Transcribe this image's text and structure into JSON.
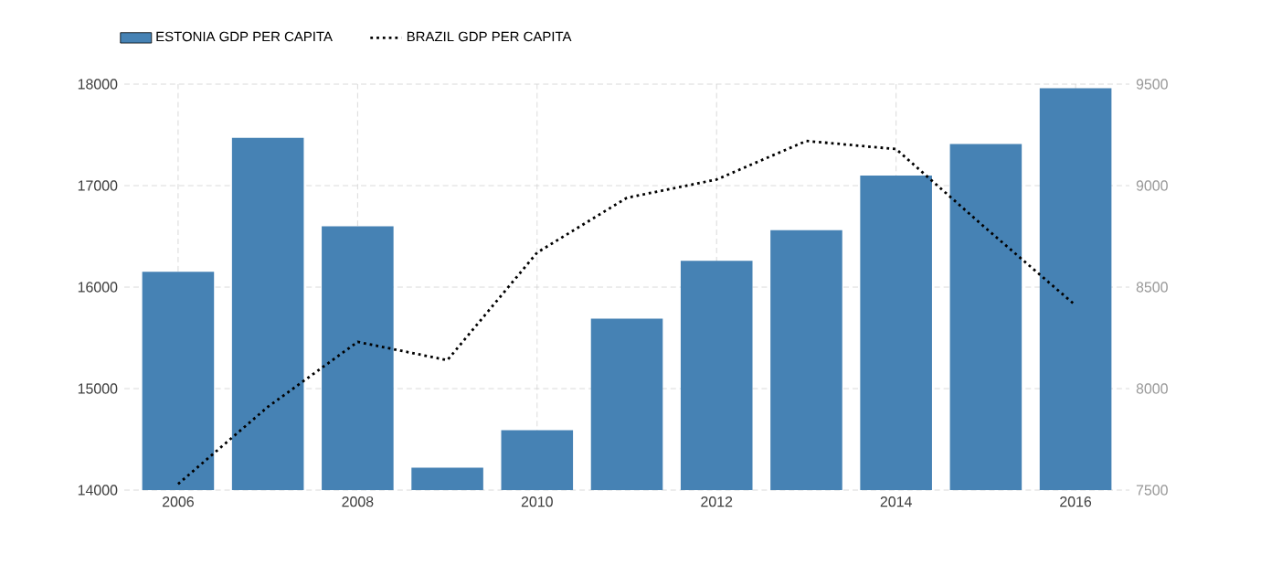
{
  "chart_data": {
    "type": "bar",
    "x": [
      2006,
      2007,
      2008,
      2009,
      2010,
      2011,
      2012,
      2013,
      2014,
      2015,
      2016
    ],
    "series": [
      {
        "name": "ESTONIA GDP PER CAPITA",
        "color": "#4682b4",
        "values": [
          16150,
          17470,
          16600,
          14220,
          14590,
          15690,
          16260,
          16560,
          17100,
          17410,
          17960
        ]
      },
      {
        "name": "BRAZIL GDP PER CAPITA",
        "type": "line",
        "axis": "y2",
        "color": "#000000",
        "line_style": "dotted",
        "values": [
          7530,
          7910,
          8230,
          8140,
          8670,
          8940,
          9030,
          9220,
          9180,
          8790,
          8410
        ]
      }
    ],
    "xlim": [
      2005.4,
      2016.6
    ],
    "xticks": [
      2006,
      2008,
      2010,
      2012,
      2014,
      2016
    ],
    "ylim": [
      14000,
      18000
    ],
    "yticks": [
      14000,
      15000,
      16000,
      17000,
      18000
    ],
    "y2lim": [
      7500,
      9500
    ],
    "y2ticks": [
      7500,
      8000,
      8500,
      9000,
      9500
    ],
    "grid": true,
    "legend": "top left"
  }
}
